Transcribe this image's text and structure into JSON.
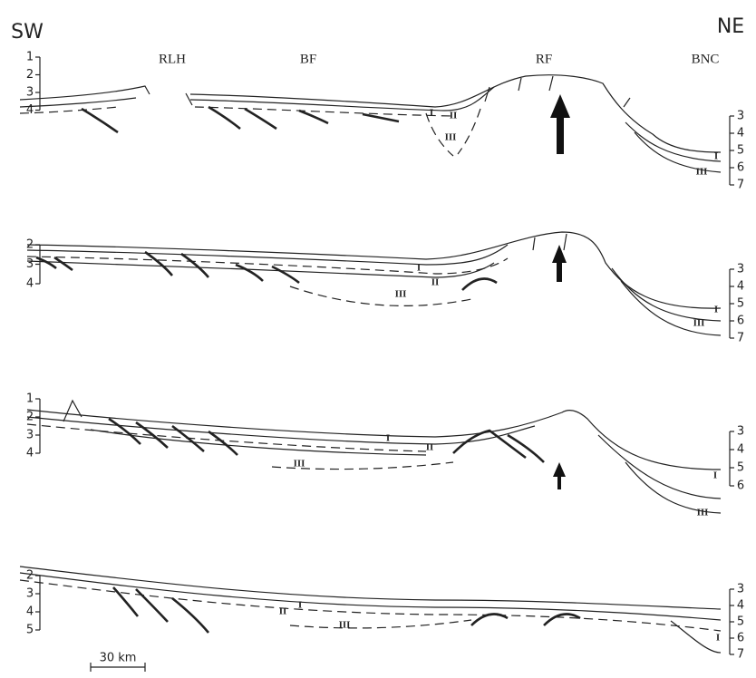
{
  "header": {
    "left": "SW",
    "right": "NE"
  },
  "regions": [
    "RLH",
    "BF",
    "RF",
    "BNC"
  ],
  "profiles": [
    {
      "left_scale": [
        1,
        2,
        3,
        4
      ],
      "right_scale": [
        3,
        4,
        5,
        6,
        7
      ],
      "units": [
        "I",
        "II",
        "III",
        "I",
        "III"
      ]
    },
    {
      "left_scale": [
        2,
        3,
        4
      ],
      "right_scale": [
        3,
        4,
        5,
        6,
        7
      ],
      "units": [
        "I",
        "II",
        "III",
        "I",
        "III"
      ]
    },
    {
      "left_scale": [
        1,
        2,
        3,
        4
      ],
      "right_scale": [
        3,
        4,
        5,
        6
      ],
      "units": [
        "I",
        "II",
        "III",
        "I",
        "III"
      ]
    },
    {
      "left_scale": [
        2,
        3,
        4,
        5
      ],
      "right_scale": [
        3,
        4,
        5,
        6,
        7
      ],
      "units": [
        "II",
        "I",
        "III",
        "I"
      ]
    }
  ],
  "scale_bar": "30 km"
}
